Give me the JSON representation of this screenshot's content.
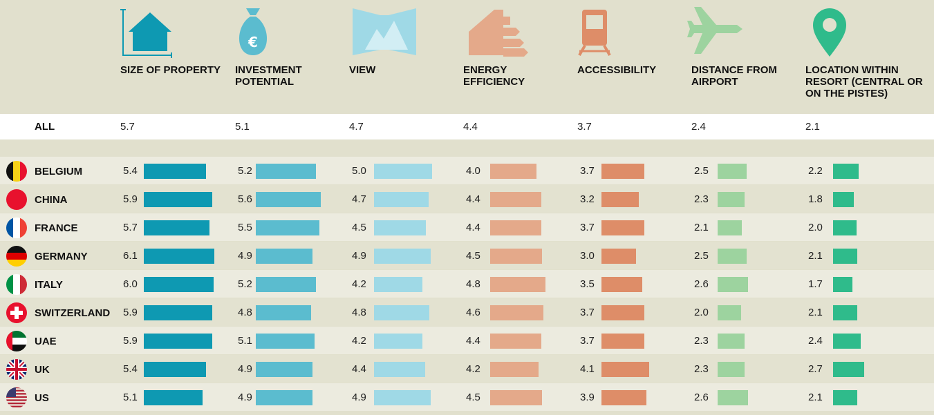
{
  "table": {
    "columns": [
      {
        "header": "SIZE OF PROPERTY",
        "color": "#0e99b2"
      },
      {
        "header": "INVESTMENT POTENTIAL",
        "color": "#5bbccf"
      },
      {
        "header": "VIEW",
        "color": "#9fd9e6"
      },
      {
        "header": "ENERGY EFFICIENCY",
        "color": "#e4a98a"
      },
      {
        "header": "ACCESSIBILITY",
        "color": "#de8d68"
      },
      {
        "header": "DISTANCE FROM AIRPORT",
        "color": "#9dd39f"
      },
      {
        "header": "LOCATION WITHIN RESORT (CENTRAL OR ON THE PISTES)",
        "color": "#2fbb8b"
      }
    ],
    "all": {
      "label": "ALL",
      "values": [
        5.7,
        5.1,
        4.7,
        4.4,
        3.7,
        2.4,
        2.1
      ]
    },
    "rows": [
      {
        "label": "BELGIUM",
        "values": [
          5.4,
          5.2,
          5.0,
          4.0,
          3.7,
          2.5,
          2.2
        ],
        "value_labels": [
          "5.4",
          "5.2",
          "5.0",
          "4.0",
          "3.7",
          "2.5",
          "2.2"
        ]
      },
      {
        "label": "CHINA",
        "values": [
          5.9,
          5.6,
          4.7,
          4.4,
          3.2,
          2.3,
          1.8
        ],
        "value_labels": [
          "5.9",
          "5.6",
          "4.7",
          "4.4",
          "3.2",
          "2.3",
          "1.8"
        ]
      },
      {
        "label": "FRANCE",
        "values": [
          5.7,
          5.5,
          4.5,
          4.4,
          3.7,
          2.1,
          2.0
        ],
        "value_labels": [
          "5.7",
          "5.5",
          "4.5",
          "4.4",
          "3.7",
          "2.1",
          "2.0"
        ]
      },
      {
        "label": "GERMANY",
        "values": [
          6.1,
          4.9,
          4.9,
          4.5,
          3.0,
          2.5,
          2.1
        ],
        "value_labels": [
          "6.1",
          "4.9",
          "4.9",
          "4.5",
          "3.0",
          "2.5",
          "2.1"
        ]
      },
      {
        "label": "ITALY",
        "values": [
          6.0,
          5.2,
          4.2,
          4.8,
          3.5,
          2.6,
          1.7
        ],
        "value_labels": [
          "6.0",
          "5.2",
          "4.2",
          "4.8",
          "3.5",
          "2.6",
          "1.7"
        ]
      },
      {
        "label": "SWITZERLAND",
        "values": [
          5.9,
          4.8,
          4.8,
          4.6,
          3.7,
          2.0,
          2.1
        ],
        "value_labels": [
          "5.9",
          "4.8",
          "4.8",
          "4.6",
          "3.7",
          "2.0",
          "2.1"
        ]
      },
      {
        "label": "UAE",
        "values": [
          5.9,
          5.1,
          4.2,
          4.4,
          3.7,
          2.3,
          2.4
        ],
        "value_labels": [
          "5.9",
          "5.1",
          "4.2",
          "4.4",
          "3.7",
          "2.3",
          "2.4"
        ]
      },
      {
        "label": "UK",
        "values": [
          5.4,
          4.9,
          4.4,
          4.2,
          4.1,
          2.3,
          2.7
        ],
        "value_labels": [
          "5.4",
          "4.9",
          "4.4",
          "4.2",
          "4.1",
          "2.3",
          "2.7"
        ]
      },
      {
        "label": "US",
        "values": [
          5.1,
          4.9,
          4.9,
          4.5,
          3.9,
          2.6,
          2.1
        ],
        "value_labels": [
          "5.1",
          "4.9",
          "4.9",
          "4.5",
          "3.9",
          "2.6",
          "2.1"
        ]
      }
    ]
  }
}
